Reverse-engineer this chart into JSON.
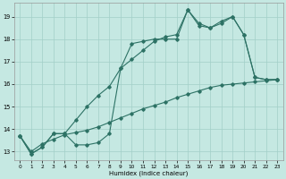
{
  "xlabel": "Humidex (Indice chaleur)",
  "background_color": "#c5e8e2",
  "grid_color": "#a2cfc8",
  "line_color": "#2d7265",
  "xlim": [
    -0.5,
    23.5
  ],
  "ylim": [
    12.6,
    19.6
  ],
  "xticks": [
    0,
    1,
    2,
    3,
    4,
    5,
    6,
    7,
    8,
    9,
    10,
    11,
    12,
    13,
    14,
    15,
    16,
    17,
    18,
    19,
    20,
    21,
    22,
    23
  ],
  "yticks": [
    13,
    14,
    15,
    16,
    17,
    18,
    19
  ],
  "line_main_x": [
    0,
    1,
    2,
    3,
    4,
    5,
    6,
    7,
    8,
    9,
    10,
    11,
    12,
    13,
    14,
    15,
    16,
    17,
    18,
    19,
    20,
    21,
    22,
    23
  ],
  "line_main_y": [
    13.7,
    12.9,
    13.2,
    13.8,
    13.8,
    13.3,
    13.3,
    13.4,
    13.8,
    16.7,
    17.8,
    17.9,
    18.0,
    18.0,
    18.0,
    19.3,
    18.6,
    18.5,
    18.7,
    19.0,
    18.2,
    16.3,
    16.2,
    16.2
  ],
  "line_diag_x": [
    0,
    1,
    2,
    3,
    4,
    5,
    6,
    7,
    8,
    9,
    10,
    11,
    12,
    13,
    14,
    15,
    16,
    17,
    18,
    19,
    20,
    21,
    22,
    23
  ],
  "line_diag_y": [
    13.7,
    13.0,
    13.35,
    13.55,
    13.75,
    13.85,
    13.95,
    14.1,
    14.3,
    14.5,
    14.7,
    14.9,
    15.05,
    15.2,
    15.4,
    15.55,
    15.7,
    15.85,
    15.95,
    16.0,
    16.05,
    16.1,
    16.15,
    16.2
  ],
  "line_env_x": [
    0,
    1,
    2,
    3,
    4,
    5,
    6,
    7,
    8,
    9,
    10,
    11,
    12,
    13,
    14,
    15,
    16,
    17,
    18,
    19,
    20,
    21,
    22,
    23
  ],
  "line_env_y": [
    13.7,
    12.9,
    13.2,
    13.8,
    13.8,
    14.4,
    15.0,
    15.5,
    15.9,
    16.7,
    17.1,
    17.5,
    17.9,
    18.1,
    18.2,
    19.3,
    18.7,
    18.5,
    18.8,
    19.0,
    18.2,
    16.3,
    16.2,
    16.2
  ]
}
